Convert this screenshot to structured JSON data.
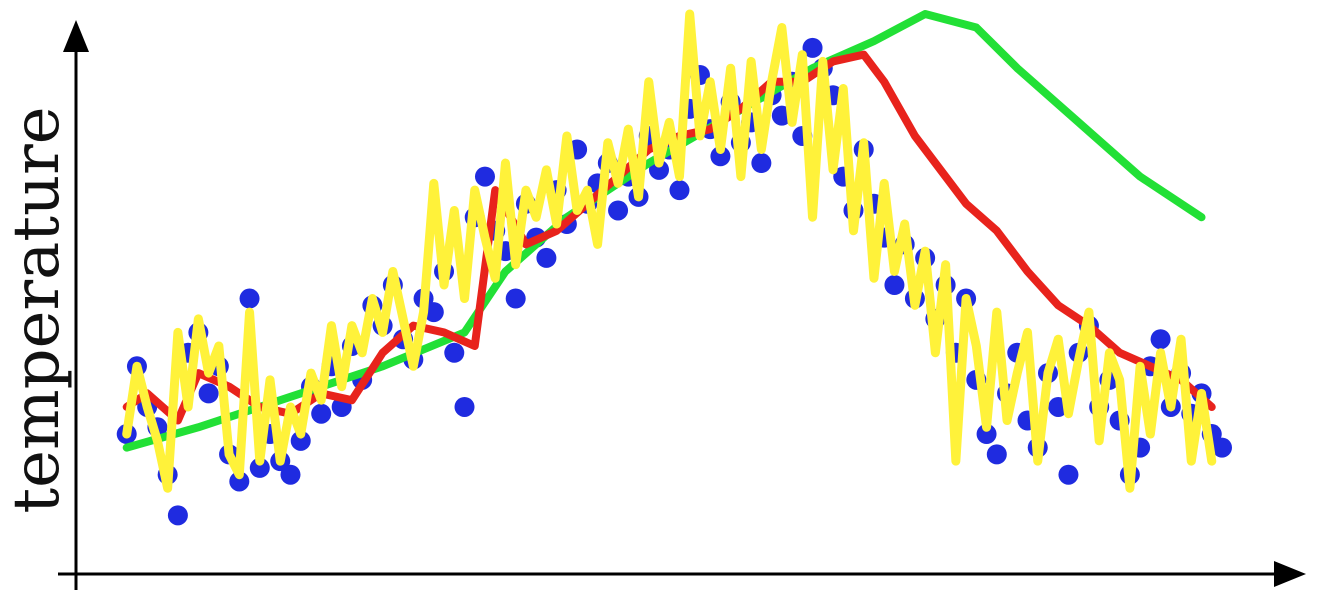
{
  "chart_data": {
    "type": "scatter",
    "title": "",
    "xlabel": "",
    "ylabel": "temperature",
    "xlim": [
      0,
      110
    ],
    "ylim": [
      0,
      80
    ],
    "grid": false,
    "legend": "none",
    "axes_color": "#000000",
    "points_color": "#1f2be0",
    "x": [
      3,
      4,
      5,
      6,
      7,
      8,
      9,
      10,
      11,
      12,
      13,
      14,
      15,
      16,
      17,
      18,
      19,
      20,
      21,
      22,
      23,
      24,
      25,
      26,
      27,
      28,
      29,
      30,
      31,
      32,
      33,
      34,
      35,
      36,
      37,
      38,
      39,
      40,
      41,
      42,
      43,
      44,
      45,
      46,
      47,
      48,
      49,
      50,
      51,
      52,
      53,
      54,
      55,
      56,
      57,
      58,
      59,
      60,
      61,
      62,
      63,
      64,
      65,
      66,
      67,
      68,
      69,
      70,
      71,
      72,
      73,
      74,
      75,
      76,
      77,
      78,
      79,
      80,
      81,
      82,
      83,
      84,
      85,
      86,
      87,
      88,
      89,
      90,
      91,
      92,
      93,
      94,
      95,
      96,
      97,
      98,
      99,
      100,
      101,
      102,
      103,
      104,
      105,
      106,
      107,
      108,
      109,
      110
    ],
    "y": [
      18,
      28,
      22,
      19,
      12,
      6,
      30,
      33,
      24,
      28,
      15,
      11,
      38,
      13,
      18,
      14,
      12,
      17,
      25,
      21,
      28,
      22,
      31,
      26,
      37,
      34,
      40,
      32,
      29,
      38,
      36,
      42,
      30,
      22,
      50,
      56,
      48,
      45,
      38,
      52,
      47,
      44,
      54,
      49,
      60,
      52,
      55,
      58,
      51,
      56,
      53,
      62,
      57,
      60,
      54,
      66,
      71,
      63,
      59,
      67,
      61,
      64,
      58,
      68,
      65,
      70,
      62,
      75,
      72,
      68,
      56,
      51,
      60,
      52,
      47,
      40,
      46,
      38,
      44,
      35,
      40,
      30,
      38,
      26,
      18,
      15,
      24,
      30,
      20,
      16,
      27,
      22,
      12,
      30,
      34,
      22,
      26,
      20,
      12,
      16,
      28,
      32,
      22,
      27,
      21,
      24,
      18,
      16
    ],
    "series": [
      {
        "color": "#22e036",
        "x": [
          3,
          10,
          20,
          28,
          36,
          40,
          46,
          54,
          62,
          70,
          76,
          81,
          86,
          90,
          96,
          102,
          108
        ],
        "y": [
          16,
          19,
          24,
          28,
          33,
          42,
          50,
          58,
          65,
          72,
          76,
          80,
          78,
          72,
          64,
          56,
          50
        ]
      },
      {
        "color": "#e8231c",
        "x": [
          3,
          5,
          8,
          10,
          13,
          16,
          19,
          22,
          25,
          28,
          31,
          34,
          37,
          39,
          42,
          45,
          48,
          51,
          54,
          57,
          60,
          63,
          66,
          69,
          72,
          75,
          77,
          80,
          82,
          85,
          88,
          91,
          94,
          97,
          100,
          103,
          106,
          109
        ],
        "y": [
          22,
          24,
          20,
          27,
          25,
          22,
          21,
          24,
          23,
          30,
          34,
          33,
          31,
          54,
          46,
          48,
          52,
          56,
          60,
          62,
          63,
          66,
          70,
          70,
          73,
          74,
          70,
          62,
          58,
          52,
          48,
          42,
          37,
          34,
          30,
          28,
          26,
          22
        ]
      },
      {
        "color": "#fff23a",
        "x": [
          3,
          4,
          5,
          6,
          7,
          8,
          9,
          10,
          11,
          12,
          13,
          14,
          15,
          16,
          17,
          18,
          19,
          20,
          21,
          22,
          23,
          24,
          25,
          26,
          27,
          28,
          29,
          30,
          31,
          32,
          33,
          34,
          35,
          36,
          37,
          38,
          39,
          40,
          41,
          42,
          43,
          44,
          45,
          46,
          47,
          48,
          49,
          50,
          51,
          52,
          53,
          54,
          55,
          56,
          57,
          58,
          59,
          60,
          61,
          62,
          63,
          64,
          65,
          66,
          67,
          68,
          69,
          70,
          71,
          72,
          73,
          74,
          75,
          76,
          77,
          78,
          79,
          80,
          81,
          82,
          83,
          84,
          85,
          86,
          87,
          88,
          89,
          90,
          91,
          92,
          93,
          94,
          95,
          96,
          97,
          98,
          99,
          100,
          101,
          102,
          103,
          104,
          105,
          106,
          107,
          108,
          109
        ],
        "y": [
          18,
          28,
          22,
          17,
          10,
          33,
          22,
          35,
          27,
          31,
          15,
          12,
          36,
          14,
          26,
          14,
          22,
          18,
          27,
          23,
          34,
          25,
          34,
          30,
          38,
          33,
          42,
          35,
          28,
          36,
          55,
          40,
          51,
          38,
          54,
          47,
          41,
          58,
          43,
          54,
          50,
          57,
          49,
          62,
          51,
          54,
          46,
          61,
          55,
          63,
          53,
          70,
          58,
          64,
          56,
          80,
          62,
          70,
          60,
          72,
          56,
          73,
          60,
          70,
          78,
          64,
          74,
          50,
          73,
          57,
          69,
          48,
          61,
          41,
          55,
          42,
          49,
          37,
          45,
          30,
          43,
          14,
          38,
          31,
          19,
          36,
          20,
          27,
          33,
          14,
          27,
          32,
          21,
          29,
          36,
          17,
          30,
          26,
          10,
          28,
          18,
          30,
          22,
          32,
          14,
          24,
          14
        ]
      }
    ]
  }
}
